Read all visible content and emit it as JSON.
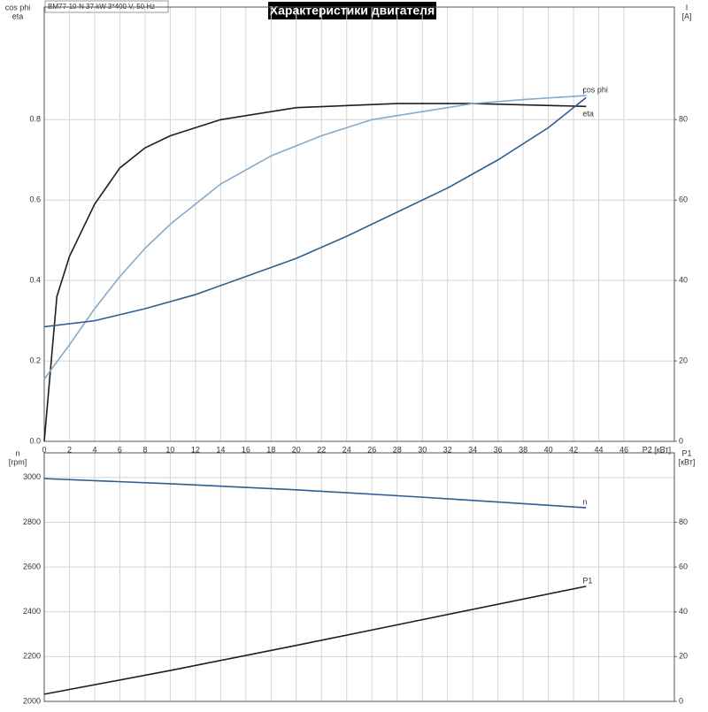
{
  "chart_data": [
    {
      "type": "line",
      "title": "Характеристики двигателя",
      "subtitle": "BM77-10-N  37 kW  3*400 V, 50 Hz",
      "x_label": "P2 [кВт]",
      "y_label": [
        "cos phi",
        "eta"
      ],
      "y2_label": [
        "I",
        "[A]"
      ],
      "xlim": [
        0,
        50
      ],
      "xticks": [
        0,
        2,
        4,
        6,
        8,
        10,
        12,
        14,
        16,
        18,
        20,
        22,
        24,
        26,
        28,
        30,
        32,
        34,
        36,
        38,
        40,
        42,
        44,
        46
      ],
      "ylim": [
        0,
        1.08
      ],
      "yticks": [
        {
          "value": 0,
          "label": "0.0"
        },
        0.2,
        0.4,
        0.6,
        0.8
      ],
      "y2lim": [
        0,
        108
      ],
      "y2ticks": [
        0,
        20,
        40,
        60,
        80
      ],
      "grid": true,
      "series": [
        {
          "name": "eta",
          "color": "#1e1e1e",
          "x": [
            0,
            1,
            2,
            4,
            6,
            8,
            10,
            14,
            20,
            28,
            34,
            43
          ],
          "values": [
            0,
            0.36,
            0.46,
            0.59,
            0.68,
            0.73,
            0.76,
            0.8,
            0.83,
            0.84,
            0.84,
            0.833
          ]
        },
        {
          "name": "cos phi",
          "color": "#86aacb",
          "x": [
            0,
            2,
            4,
            6,
            8,
            10,
            14,
            18,
            22,
            26,
            30,
            34,
            38,
            43
          ],
          "values": [
            0.155,
            0.24,
            0.33,
            0.41,
            0.48,
            0.54,
            0.64,
            0.71,
            0.76,
            0.8,
            0.82,
            0.84,
            0.85,
            0.86
          ]
        },
        {
          "name": "I",
          "color": "#2d5f92",
          "axis": "y2",
          "x": [
            0,
            4,
            8,
            12,
            16,
            20,
            24,
            28,
            32,
            36,
            40,
            43
          ],
          "values": [
            28.5,
            30,
            33,
            36.5,
            41,
            45.5,
            51,
            57,
            63,
            70,
            78,
            85.5
          ]
        }
      ]
    },
    {
      "type": "line",
      "y_label": [
        "n",
        "[rpm]"
      ],
      "y2_label": [
        "P1",
        "[кВт]"
      ],
      "xlim": [
        0,
        50
      ],
      "ylim": [
        2000,
        3110
      ],
      "yticks": [
        2000,
        2200,
        2400,
        2600,
        2800,
        3000
      ],
      "y2lim": [
        0,
        111
      ],
      "y2ticks": [
        0,
        20,
        40,
        60,
        80
      ],
      "grid": true,
      "series": [
        {
          "name": "n",
          "color": "#2d5f92",
          "x": [
            0,
            10,
            20,
            30,
            43
          ],
          "values": [
            2995,
            2972,
            2945,
            2912,
            2865
          ]
        },
        {
          "name": "P1",
          "color": "#1e1e1e",
          "axis": "y2",
          "x": [
            0,
            10,
            20,
            30,
            43
          ],
          "values": [
            3.2,
            13.8,
            25,
            36.5,
            51.4
          ]
        }
      ]
    }
  ]
}
